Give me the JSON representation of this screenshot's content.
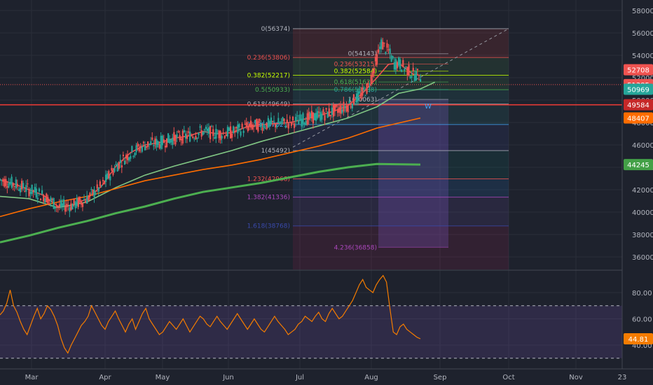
{
  "colors": {
    "background": "#1e222d",
    "grid": "#2a2e39",
    "axis_text": "#b2b5be",
    "candle_up": "#26a69a",
    "candle_down": "#ef5350",
    "ema_fast": "#ef5350",
    "ema_mid": "#81c784",
    "ema_slow": "#ff6d00",
    "sma_long": "#4caf50",
    "rsi_line": "#f57c00",
    "rsi_band": "#7e57c2",
    "support_line": "#e53935"
  },
  "chart_data": [
    {
      "type": "candlestick",
      "title": "",
      "x_axis": {
        "tick_labels": [
          "Mar",
          "Apr",
          "May",
          "Jun",
          "Jul",
          "Aug",
          "Sep",
          "Oct",
          "Nov",
          "23"
        ]
      },
      "y_axis": {
        "range": [
          35000,
          58500
        ],
        "tick_labels": [
          "58000",
          "56000",
          "54000",
          "52000",
          "50000",
          "48000",
          "46000",
          "44000",
          "42000",
          "40000",
          "38000",
          "36000"
        ]
      },
      "price_badges": [
        {
          "label": "52708",
          "color": "#ef5350"
        },
        {
          "label": "51385",
          "color": "#ef5350"
        },
        {
          "label": "50969",
          "color": "#26a69a"
        },
        {
          "label": "49584",
          "color": "#c62828"
        },
        {
          "label": "48407",
          "color": "#ff6d00"
        },
        {
          "label": "44245",
          "color": "#43a047"
        }
      ],
      "fib_main": [
        {
          "label": "0(56374)",
          "value": 56374,
          "color": "#b2b5be"
        },
        {
          "label": "0.236(53806)",
          "value": 53806,
          "color": "#ef5350"
        },
        {
          "label": "0.382(52217)",
          "value": 52217,
          "color": "#c6ff00"
        },
        {
          "label": "0.5(50933)",
          "value": 50933,
          "color": "#4caf50"
        },
        {
          "label": "0.618(49649)",
          "value": 49649,
          "color": "#b2b5be"
        },
        {
          "label": "0.786(47821)",
          "value": 47821,
          "color": "#42a5f5"
        },
        {
          "label": "1(45492)",
          "value": 45492,
          "color": "#b2b5be"
        },
        {
          "label": "1.232(42968)",
          "value": 42968,
          "color": "#ef5350"
        },
        {
          "label": "1.382(41336)",
          "value": 41336,
          "color": "#ab47bc"
        },
        {
          "label": "1.618(38768)",
          "value": 38768,
          "color": "#3949ab"
        }
      ],
      "fib_inner": [
        {
          "label": "0(54143)",
          "value": 54143,
          "color": "#b2b5be"
        },
        {
          "label": "0.236(53215)",
          "value": 53215,
          "color": "#ef5350"
        },
        {
          "label": "0.382(52584)",
          "value": 52584,
          "color": "#c6ff00"
        },
        {
          "label": "0.618(51621)",
          "value": 51621,
          "color": "#4caf50"
        },
        {
          "label": "0.786(50938)",
          "value": 50938,
          "color": "#26a69a"
        },
        {
          "label": "1(50063)",
          "value": 50063,
          "color": "#b2b5be"
        },
        {
          "label": "4.236(36858)",
          "value": 36858,
          "color": "#ab47bc"
        }
      ],
      "annotations": [
        "W"
      ],
      "series": [
        {
          "name": "",
          "kind": "ema",
          "color": "#ef5350",
          "points": [
            [
              0,
              42900
            ],
            [
              10,
              42500
            ],
            [
              20,
              42000
            ],
            [
              30,
              41500
            ],
            [
              40,
              40500
            ],
            [
              50,
              40600
            ],
            [
              60,
              41200
            ],
            [
              70,
              42300
            ],
            [
              80,
              44100
            ],
            [
              90,
              45300
            ],
            [
              100,
              46000
            ],
            [
              110,
              46200
            ],
            [
              120,
              46600
            ],
            [
              130,
              46800
            ],
            [
              140,
              47200
            ],
            [
              150,
              47000
            ],
            [
              160,
              47100
            ],
            [
              170,
              47600
            ],
            [
              180,
              47800
            ],
            [
              190,
              47900
            ],
            [
              200,
              48000
            ],
            [
              210,
              48300
            ],
            [
              220,
              48600
            ],
            [
              230,
              49000
            ],
            [
              240,
              49500
            ],
            [
              250,
              50600
            ],
            [
              260,
              52000
            ],
            [
              268,
              53200
            ],
            [
              275,
              53300
            ],
            [
              280,
              52800
            ],
            [
              285,
              52300
            ],
            [
              290,
              52200
            ]
          ]
        },
        {
          "name": "",
          "kind": "ema",
          "color": "#81c784",
          "points": [
            [
              0,
              41400
            ],
            [
              20,
              41200
            ],
            [
              40,
              40400
            ],
            [
              60,
              40900
            ],
            [
              80,
              42200
            ],
            [
              100,
              43300
            ],
            [
              120,
              44100
            ],
            [
              140,
              44800
            ],
            [
              160,
              45500
            ],
            [
              180,
              46300
            ],
            [
              200,
              47000
            ],
            [
              220,
              47700
            ],
            [
              240,
              48400
            ],
            [
              260,
              49400
            ],
            [
              275,
              50600
            ],
            [
              290,
              51000
            ],
            [
              300,
              51600
            ]
          ]
        },
        {
          "name": "",
          "kind": "ema",
          "color": "#ff6d00",
          "points": [
            [
              0,
              39600
            ],
            [
              20,
              40300
            ],
            [
              40,
              40900
            ],
            [
              60,
              41400
            ],
            [
              80,
              42100
            ],
            [
              100,
              42800
            ],
            [
              120,
              43300
            ],
            [
              140,
              43800
            ],
            [
              160,
              44200
            ],
            [
              180,
              44700
            ],
            [
              200,
              45300
            ],
            [
              220,
              45900
            ],
            [
              240,
              46600
            ],
            [
              260,
              47500
            ],
            [
              280,
              48100
            ],
            [
              290,
              48400
            ]
          ]
        },
        {
          "name": "",
          "kind": "sma",
          "color": "#4caf50",
          "points": [
            [
              0,
              37300
            ],
            [
              20,
              37900
            ],
            [
              40,
              38600
            ],
            [
              60,
              39200
            ],
            [
              80,
              39900
            ],
            [
              100,
              40500
            ],
            [
              120,
              41200
            ],
            [
              140,
              41800
            ],
            [
              160,
              42200
            ],
            [
              180,
              42600
            ],
            [
              200,
              43100
            ],
            [
              220,
              43600
            ],
            [
              240,
              44000
            ],
            [
              260,
              44300
            ],
            [
              290,
              44245
            ]
          ]
        }
      ]
    },
    {
      "type": "line",
      "title": "",
      "y_axis": {
        "range": [
          27,
          95
        ],
        "tick_labels": [
          "80.00",
          "60.00",
          "40.00"
        ]
      },
      "current_label": "44.81",
      "band": [
        30,
        70
      ],
      "series": [
        {
          "name": "",
          "values": [
            63,
            66,
            72,
            82,
            70,
            65,
            58,
            52,
            48,
            55,
            62,
            68,
            60,
            64,
            70,
            67,
            62,
            55,
            45,
            38,
            34,
            40,
            45,
            50,
            55,
            58,
            62,
            70,
            65,
            60,
            55,
            52,
            58,
            62,
            66,
            60,
            55,
            50,
            56,
            60,
            52,
            58,
            64,
            68,
            60,
            56,
            52,
            48,
            50,
            54,
            58,
            55,
            52,
            56,
            60,
            55,
            50,
            54,
            58,
            62,
            60,
            56,
            54,
            58,
            62,
            58,
            55,
            52,
            56,
            60,
            64,
            60,
            56,
            52,
            56,
            60,
            56,
            52,
            50,
            54,
            58,
            62,
            58,
            55,
            52,
            48,
            50,
            52,
            56,
            58,
            62,
            60,
            58,
            62,
            65,
            60,
            58,
            64,
            68,
            64,
            60,
            62,
            66,
            70,
            74,
            80,
            86,
            90,
            84,
            82,
            80,
            86,
            90,
            93,
            88,
            68,
            50,
            48,
            54,
            56,
            52,
            50,
            48,
            46,
            44.81
          ]
        }
      ]
    }
  ]
}
